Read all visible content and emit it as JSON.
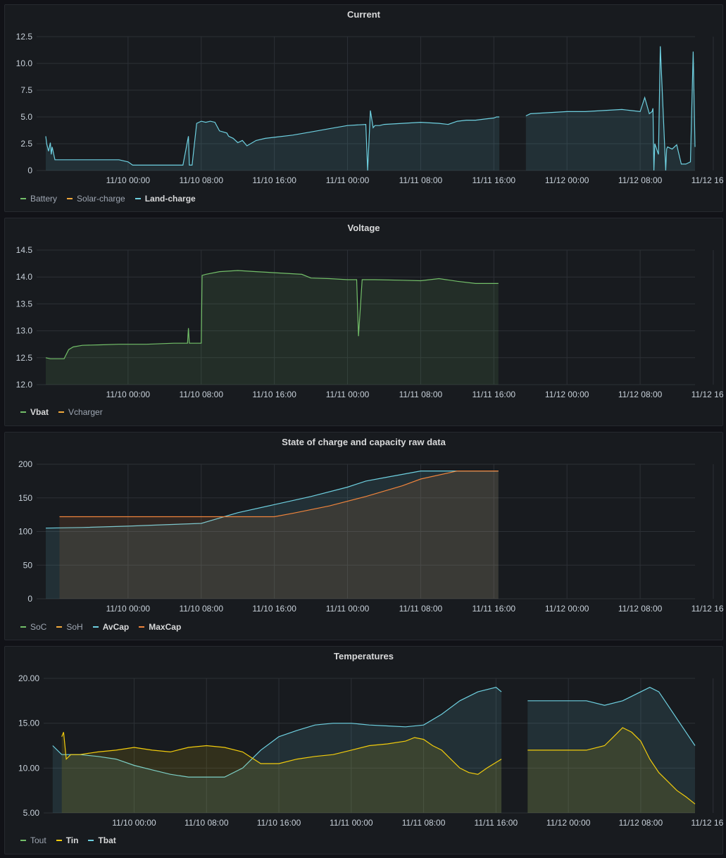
{
  "panels": [
    {
      "title": "Current",
      "legend": [
        {
          "label": "Battery",
          "color": "#73bf69",
          "active": false
        },
        {
          "label": "Solar-charge",
          "color": "#f2a93b",
          "active": false
        },
        {
          "label": "Land-charge",
          "color": "#6ed0e0",
          "active": true
        }
      ]
    },
    {
      "title": "Voltage",
      "legend": [
        {
          "label": "Vbat",
          "color": "#73bf69",
          "active": true
        },
        {
          "label": "Vcharger",
          "color": "#f2a93b",
          "active": false
        }
      ]
    },
    {
      "title": "State of charge and capacity raw data",
      "legend": [
        {
          "label": "SoC",
          "color": "#73bf69",
          "active": false
        },
        {
          "label": "SoH",
          "color": "#f2a93b",
          "active": false
        },
        {
          "label": "AvCap",
          "color": "#6ed0e0",
          "active": true
        },
        {
          "label": "MaxCap",
          "color": "#ef843c",
          "active": true
        }
      ]
    },
    {
      "title": "Temperatures",
      "legend": [
        {
          "label": "Tout",
          "color": "#73bf69",
          "active": false
        },
        {
          "label": "Tin",
          "color": "#f2cc0c",
          "active": true
        },
        {
          "label": "Tbat",
          "color": "#6ed0e0",
          "active": true
        }
      ]
    }
  ],
  "chart_data": [
    {
      "type": "line",
      "title": "Current",
      "x_ticks": [
        "11/10 00:00",
        "11/10 08:00",
        "11/10 16:00",
        "11/11 00:00",
        "11/11 08:00",
        "11/11 16:00",
        "11/12 00:00",
        "11/12 08:00",
        "11/12 16:00"
      ],
      "y_ticks": [
        "0",
        "2.5",
        "5.0",
        "7.5",
        "10.0",
        "12.5"
      ],
      "xlim": [
        -10,
        62
      ],
      "ylim": [
        0,
        12.5
      ],
      "grid": true,
      "legend_position": "bottom-left",
      "series": [
        {
          "name": "Land-charge",
          "color": "#6ed0e0",
          "fill": true,
          "x": [
            -9,
            -8.9,
            -8.7,
            -8.5,
            -8.4,
            -8.3,
            -8,
            -7,
            -6,
            -5,
            -3,
            -1,
            0,
            0.5,
            1,
            2,
            4,
            6,
            6.6,
            6.7,
            6.8,
            7,
            7.5,
            8,
            8.5,
            9,
            9.5,
            10,
            10.8,
            11,
            11.5,
            12,
            12.5,
            13,
            14,
            15,
            16,
            18,
            20,
            22,
            24,
            26,
            26.2,
            26.5,
            26.8,
            27,
            27.5,
            28,
            30,
            32,
            34,
            35,
            36,
            37,
            38,
            39,
            40,
            40.3,
            40.6
          ],
          "y": [
            3.2,
            2.5,
            1.8,
            2.6,
            1.5,
            2.2,
            1.0,
            1.0,
            1.0,
            1.0,
            1.0,
            1.0,
            0.8,
            0.5,
            0.5,
            0.5,
            0.5,
            0.5,
            3.2,
            0.5,
            0.5,
            0.5,
            4.4,
            4.6,
            4.5,
            4.6,
            4.5,
            3.7,
            3.5,
            3.2,
            3.0,
            2.6,
            2.8,
            2.3,
            2.8,
            3.0,
            3.1,
            3.3,
            3.6,
            3.9,
            4.2,
            4.3,
            0,
            5.6,
            4.0,
            4.2,
            4.2,
            4.3,
            4.4,
            4.5,
            4.4,
            4.3,
            4.6,
            4.7,
            4.7,
            4.8,
            4.9,
            5.0,
            5.0
          ]
        },
        {
          "name": "Land-charge (after gap)",
          "color": "#6ed0e0",
          "fill": true,
          "x": [
            43.5,
            44,
            46,
            48,
            50,
            52,
            54,
            55,
            56,
            56.5,
            57,
            57.3,
            57.4,
            57.5,
            57.6,
            58,
            58.2,
            58.8,
            58.9,
            59,
            59.5,
            60,
            60.5,
            61,
            61.5,
            61.8,
            62
          ],
          "y": [
            5.1,
            5.3,
            5.4,
            5.5,
            5.5,
            5.6,
            5.7,
            5.6,
            5.5,
            6.8,
            5.3,
            5.5,
            5.8,
            0,
            2.5,
            1.5,
            11.6,
            0,
            2.0,
            2.2,
            2.0,
            2.4,
            0.6,
            0.6,
            0.8,
            11.1,
            2.2
          ]
        }
      ]
    },
    {
      "type": "line",
      "title": "Voltage",
      "x_ticks": [
        "11/10 00:00",
        "11/10 08:00",
        "11/10 16:00",
        "11/11 00:00",
        "11/11 08:00",
        "11/11 16:00",
        "11/12 00:00",
        "11/12 08:00",
        "11/12 16:00"
      ],
      "y_ticks": [
        "12.0",
        "12.5",
        "13.0",
        "13.5",
        "14.0",
        "14.5"
      ],
      "xlim": [
        -10,
        62
      ],
      "ylim": [
        12,
        14.5
      ],
      "grid": true,
      "legend_position": "bottom-left",
      "series": [
        {
          "name": "Vbat",
          "color": "#73bf69",
          "fill": true,
          "x": [
            -9,
            -8.5,
            -7,
            -6.5,
            -6,
            -5,
            -3,
            -1,
            2,
            5,
            6.5,
            6.6,
            6.7,
            7,
            8,
            8.1,
            8.5,
            10,
            12,
            14,
            16,
            18,
            19,
            20,
            22,
            24,
            25,
            25.2,
            25.6,
            26,
            27,
            30,
            32,
            34,
            36,
            38,
            40.5
          ],
          "y": [
            12.5,
            12.48,
            12.48,
            12.65,
            12.7,
            12.73,
            12.74,
            12.75,
            12.75,
            12.77,
            12.77,
            13.05,
            12.77,
            12.77,
            12.77,
            14.03,
            14.05,
            14.1,
            14.12,
            14.1,
            14.08,
            14.06,
            14.05,
            13.98,
            13.97,
            13.95,
            13.95,
            12.9,
            13.95,
            13.95,
            13.95,
            13.94,
            13.93,
            13.97,
            13.92,
            13.88,
            13.88
          ]
        }
      ]
    },
    {
      "type": "line",
      "title": "State of charge and capacity raw data",
      "x_ticks": [
        "11/10 00:00",
        "11/10 08:00",
        "11/10 16:00",
        "11/11 00:00",
        "11/11 08:00",
        "11/11 16:00",
        "11/12 00:00",
        "11/12 08:00",
        "11/12 16:00"
      ],
      "y_ticks": [
        "0",
        "50",
        "100",
        "150",
        "200"
      ],
      "xlim": [
        -10,
        62
      ],
      "ylim": [
        0,
        200
      ],
      "grid": true,
      "legend_position": "bottom-left",
      "series": [
        {
          "name": "AvCap",
          "color": "#6ed0e0",
          "fill": true,
          "x": [
            -9,
            -5,
            0,
            4,
            8,
            12,
            16,
            20,
            24,
            26,
            28,
            32,
            36,
            40.5
          ],
          "y": [
            105,
            106,
            108,
            110,
            112,
            128,
            140,
            152,
            166,
            175,
            180,
            190,
            190,
            190
          ]
        },
        {
          "name": "MaxCap",
          "color": "#ef843c",
          "fill": true,
          "x": [
            -7.5,
            0,
            5,
            10,
            15,
            16,
            18,
            22,
            26,
            30,
            32,
            36,
            40.5
          ],
          "y": [
            122,
            122,
            122,
            122,
            122,
            122,
            127,
            138,
            152,
            168,
            178,
            190,
            190
          ]
        }
      ]
    },
    {
      "type": "line",
      "title": "Temperatures",
      "x_ticks": [
        "11/10 00:00",
        "11/10 08:00",
        "11/10 16:00",
        "11/11 00:00",
        "11/11 08:00",
        "11/11 16:00",
        "11/12 00:00",
        "11/12 08:00",
        "11/12 16:00"
      ],
      "y_ticks": [
        "5.00",
        "10.00",
        "15.00",
        "20.00"
      ],
      "xlim": [
        -10,
        62
      ],
      "ylim": [
        5,
        20
      ],
      "grid": true,
      "legend_position": "bottom-left",
      "series": [
        {
          "name": "Tbat",
          "color": "#6ed0e0",
          "fill": true,
          "x": [
            -9,
            -8,
            -6,
            -4,
            -2,
            0,
            2,
            4,
            6,
            8,
            10,
            12,
            13,
            14,
            16,
            18,
            20,
            22,
            24,
            26,
            28,
            30,
            32,
            34,
            36,
            38,
            40,
            40.6
          ],
          "y": [
            12.5,
            11.5,
            11.5,
            11.3,
            11,
            10.3,
            9.8,
            9.3,
            9,
            9,
            9,
            10,
            11,
            12,
            13.5,
            14.2,
            14.8,
            15,
            15,
            14.8,
            14.7,
            14.6,
            14.8,
            16,
            17.5,
            18.5,
            19,
            18.5
          ]
        },
        {
          "name": "Tin",
          "color": "#f2cc0c",
          "fill": true,
          "x": [
            -8,
            -7.8,
            -7.5,
            -7,
            -6,
            -4,
            -2,
            0,
            2,
            4,
            6,
            8,
            10,
            12,
            14,
            16,
            18,
            20,
            22,
            24,
            26,
            28,
            30,
            31,
            32,
            33,
            34,
            35,
            36,
            37,
            38,
            39,
            40.6
          ],
          "y": [
            13.5,
            14,
            11,
            11.5,
            11.5,
            11.8,
            12,
            12.3,
            12,
            11.8,
            12.3,
            12.5,
            12.3,
            11.8,
            10.5,
            10.5,
            11,
            11.3,
            11.5,
            12,
            12.5,
            12.7,
            13,
            13.4,
            13.2,
            12.5,
            12,
            11,
            10,
            9.5,
            9.3,
            10,
            11
          ]
        },
        {
          "name": "Tbat (after gap)",
          "color": "#6ed0e0",
          "fill": true,
          "x": [
            43.5,
            46,
            50,
            52,
            54,
            56,
            57,
            58,
            59,
            60,
            61,
            62
          ],
          "y": [
            17.5,
            17.5,
            17.5,
            17,
            17.5,
            18.5,
            19,
            18.5,
            17,
            15.5,
            14,
            12.5
          ]
        },
        {
          "name": "Tin (after gap)",
          "color": "#f2cc0c",
          "fill": true,
          "x": [
            43.5,
            46,
            48,
            50,
            52,
            53,
            54,
            55,
            56,
            57,
            58,
            59,
            60,
            61,
            62
          ],
          "y": [
            12,
            12,
            12,
            12,
            12.5,
            13.5,
            14.5,
            14,
            13,
            11,
            9.5,
            8.5,
            7.5,
            6.8,
            6
          ]
        }
      ]
    }
  ]
}
